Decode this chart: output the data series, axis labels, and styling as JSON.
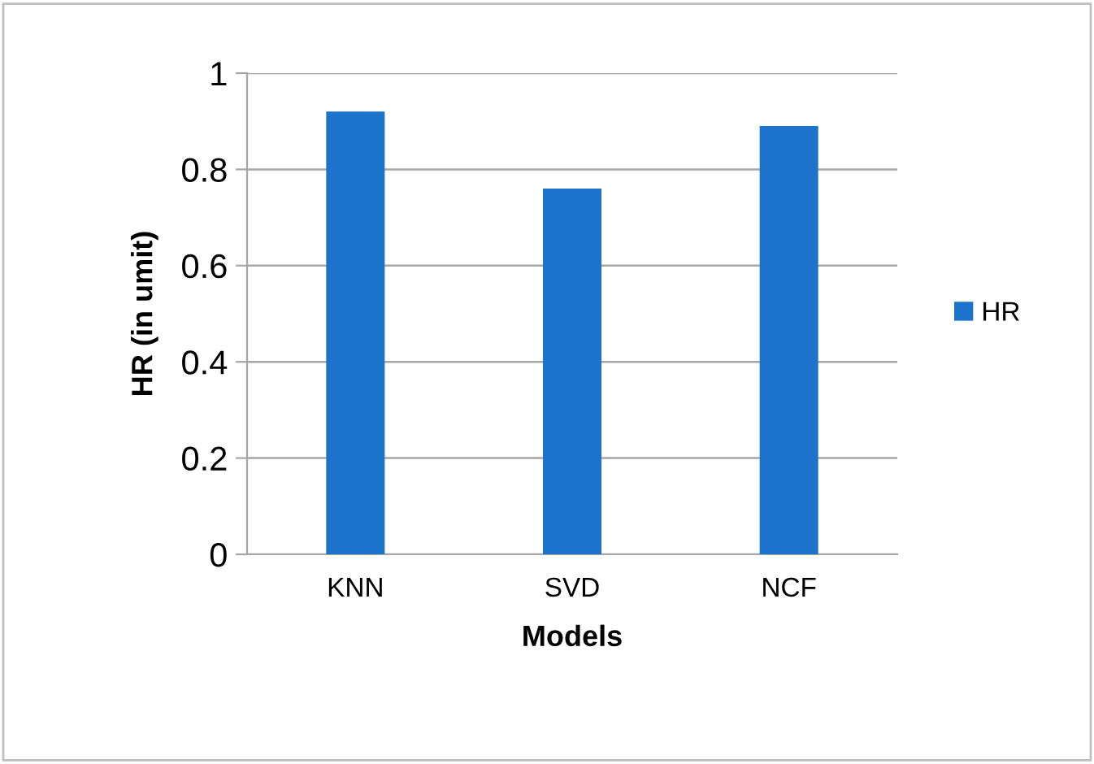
{
  "chart_data": {
    "type": "bar",
    "xlabel": "Models",
    "ylabel": "HR (in umit)",
    "categories": [
      "KNN",
      "SVD",
      "NCF"
    ],
    "series": [
      {
        "name": "HR",
        "color": "#1b73cc",
        "values": [
          0.92,
          0.76,
          0.89
        ]
      }
    ],
    "ylim": [
      0,
      1
    ],
    "yticks": [
      0,
      {
        "value": 0.2,
        "label": "0.2"
      },
      {
        "value": 0.4,
        "label": "0.4"
      },
      {
        "value": 0.6,
        "label": "0.6"
      },
      {
        "value": 0.8,
        "label": "0.8"
      },
      1
    ],
    "grid": "y",
    "legend": "right"
  }
}
